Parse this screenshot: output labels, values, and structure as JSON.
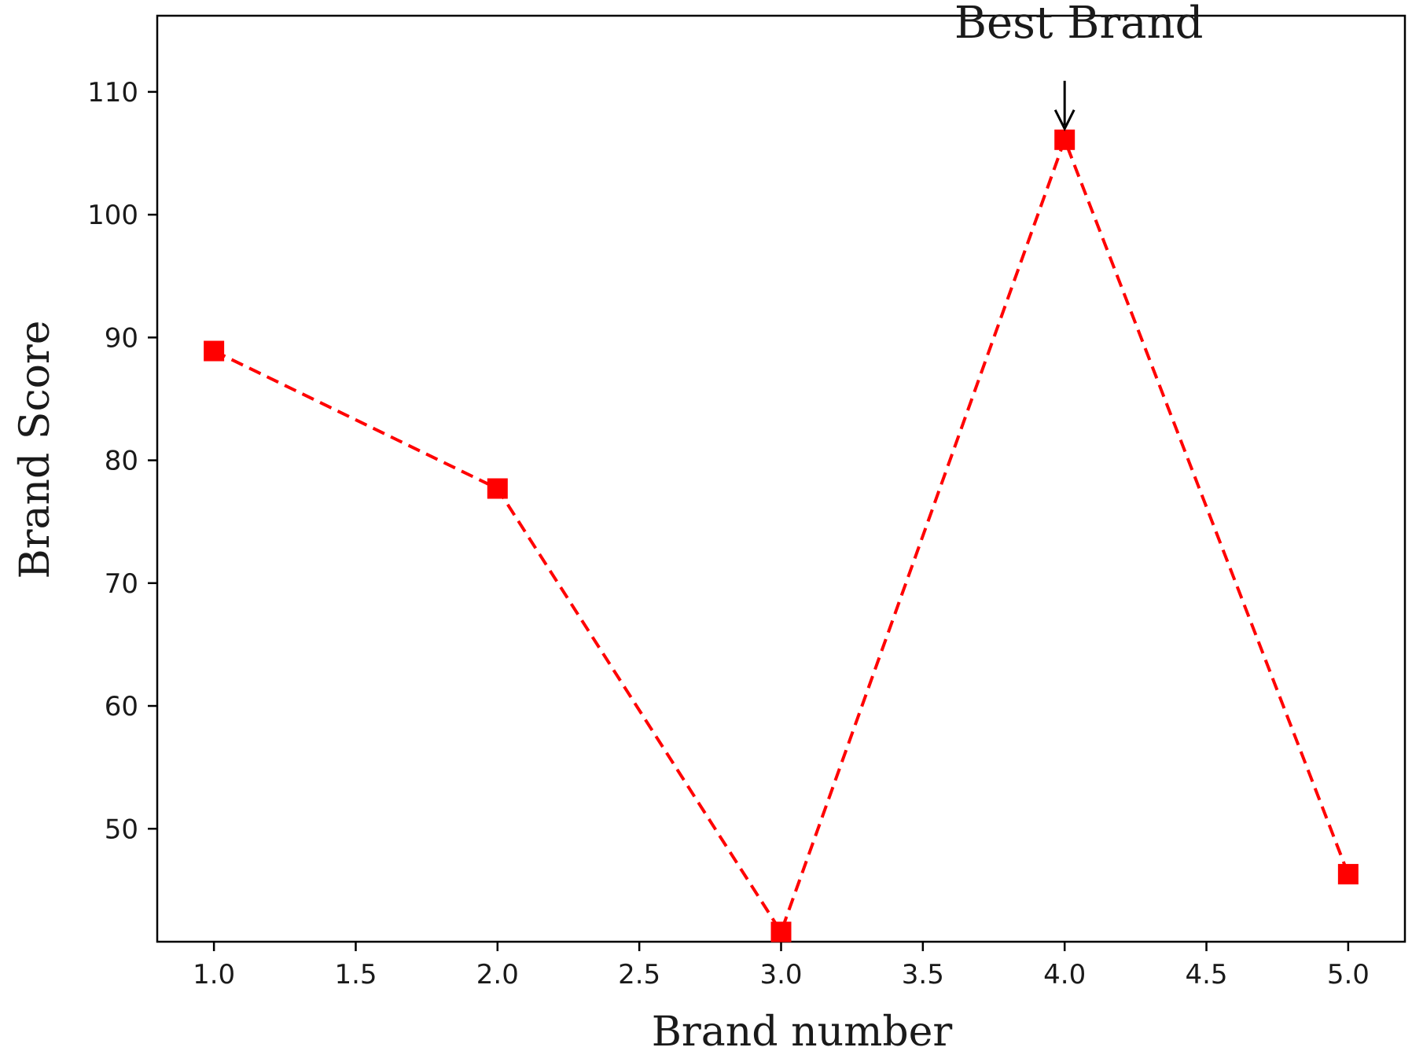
{
  "chart_data": {
    "type": "line",
    "title": "",
    "xlabel": "Brand number",
    "ylabel": "Brand Score",
    "xlim": [
      0.8,
      5.2
    ],
    "ylim": [
      40.8,
      116.2
    ],
    "xticks": [
      1.0,
      1.5,
      2.0,
      2.5,
      3.0,
      3.5,
      4.0,
      4.5,
      5.0
    ],
    "xtick_labels": [
      "1.0",
      "1.5",
      "2.0",
      "2.5",
      "3.0",
      "3.5",
      "4.0",
      "4.5",
      "5.0"
    ],
    "yticks": [
      50,
      60,
      70,
      80,
      90,
      100,
      110
    ],
    "ytick_labels": [
      "50",
      "60",
      "70",
      "80",
      "90",
      "100",
      "110"
    ],
    "grid": false,
    "series": [
      {
        "color": "#ff0000",
        "line_style": "dashed",
        "marker": "square",
        "x": [
          1.0,
          2.0,
          3.0,
          4.0,
          5.0
        ],
        "y": [
          88.9,
          77.7,
          41.6,
          106.1,
          46.3
        ]
      }
    ],
    "annotations": [
      {
        "text": "Best Brand",
        "x": 4.0,
        "y": 106.1,
        "arrow": true
      }
    ]
  }
}
